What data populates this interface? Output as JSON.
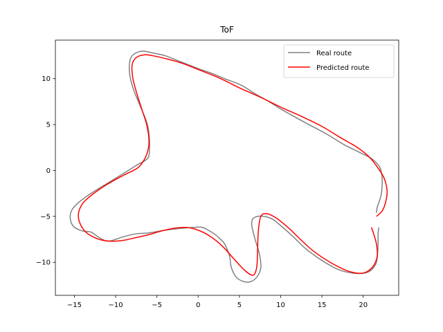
{
  "chart_data": {
    "type": "line",
    "title": "ToF",
    "xlabel": "",
    "ylabel": "",
    "xlim": [
      -17.3,
      24.3
    ],
    "ylim": [
      -13.6,
      14.2
    ],
    "xticks": [
      -15,
      -10,
      -5,
      0,
      5,
      10,
      15,
      20
    ],
    "yticks": [
      -10,
      -5,
      0,
      5,
      10
    ],
    "grid": false,
    "legend_position": "top-right",
    "series": [
      {
        "name": "Real route",
        "color": "#808080",
        "points": [
          [
            21.6,
            -4.6
          ],
          [
            21.7,
            -4.0
          ],
          [
            21.9,
            -3.5
          ],
          [
            22.2,
            -2.5
          ],
          [
            22.3,
            -1.2
          ],
          [
            22.2,
            -0.2
          ],
          [
            21.9,
            0.5
          ],
          [
            21.0,
            1.3
          ],
          [
            19.5,
            2.0
          ],
          [
            17.7,
            2.8
          ],
          [
            15.5,
            4.0
          ],
          [
            13.0,
            5.2
          ],
          [
            10.0,
            6.7
          ],
          [
            8.6,
            7.5
          ],
          [
            7.0,
            8.3
          ],
          [
            5.2,
            9.3
          ],
          [
            3.2,
            10.0
          ],
          [
            1.6,
            10.6
          ],
          [
            0.0,
            11.1
          ],
          [
            -2.0,
            11.8
          ],
          [
            -4.0,
            12.5
          ],
          [
            -5.5,
            12.8
          ],
          [
            -6.6,
            13.0
          ],
          [
            -7.3,
            12.9
          ],
          [
            -8.0,
            12.5
          ],
          [
            -8.3,
            11.8
          ],
          [
            -8.3,
            10.5
          ],
          [
            -7.9,
            9.0
          ],
          [
            -7.2,
            7.4
          ],
          [
            -6.5,
            5.9
          ],
          [
            -6.1,
            4.8
          ],
          [
            -5.9,
            3.4
          ],
          [
            -5.9,
            2.2
          ],
          [
            -6.0,
            1.5
          ],
          [
            -6.4,
            1.1
          ],
          [
            -7.4,
            0.6
          ],
          [
            -9.0,
            -0.3
          ],
          [
            -11.0,
            -1.4
          ],
          [
            -13.0,
            -2.5
          ],
          [
            -14.5,
            -3.5
          ],
          [
            -15.3,
            -4.3
          ],
          [
            -15.5,
            -5.2
          ],
          [
            -15.1,
            -6.1
          ],
          [
            -14.0,
            -6.6
          ],
          [
            -13.0,
            -6.7
          ],
          [
            -12.0,
            -7.3
          ],
          [
            -11.0,
            -7.7
          ],
          [
            -10.0,
            -7.5
          ],
          [
            -9.0,
            -7.2
          ],
          [
            -7.5,
            -6.9
          ],
          [
            -6.0,
            -6.8
          ],
          [
            -4.0,
            -6.5
          ],
          [
            -2.0,
            -6.3
          ],
          [
            -0.5,
            -6.2
          ],
          [
            0.5,
            -6.2
          ],
          [
            1.6,
            -6.7
          ],
          [
            2.5,
            -7.3
          ],
          [
            3.2,
            -8.0
          ],
          [
            3.8,
            -9.3
          ],
          [
            4.0,
            -10.5
          ],
          [
            4.6,
            -11.6
          ],
          [
            5.5,
            -12.1
          ],
          [
            6.4,
            -12.1
          ],
          [
            7.2,
            -11.5
          ],
          [
            7.6,
            -10.5
          ],
          [
            7.4,
            -9.0
          ],
          [
            6.9,
            -7.5
          ],
          [
            6.5,
            -6.0
          ],
          [
            6.6,
            -5.3
          ],
          [
            7.2,
            -5.0
          ],
          [
            8.0,
            -5.0
          ],
          [
            9.0,
            -5.3
          ],
          [
            10.0,
            -6.0
          ],
          [
            11.5,
            -7.2
          ],
          [
            13.0,
            -8.5
          ],
          [
            15.0,
            -9.8
          ],
          [
            17.0,
            -10.8
          ],
          [
            19.0,
            -11.2
          ],
          [
            20.5,
            -11.1
          ],
          [
            21.4,
            -10.4
          ],
          [
            21.7,
            -9.5
          ],
          [
            21.8,
            -8.0
          ],
          [
            21.8,
            -6.9
          ],
          [
            21.9,
            -6.2
          ]
        ]
      },
      {
        "name": "Predicted route",
        "color": "#ff0000",
        "points": [
          [
            21.6,
            -5.0
          ],
          [
            22.3,
            -4.4
          ],
          [
            22.7,
            -3.5
          ],
          [
            22.9,
            -2.3
          ],
          [
            22.6,
            -1.0
          ],
          [
            22.0,
            0.0
          ],
          [
            20.8,
            1.4
          ],
          [
            19.3,
            2.5
          ],
          [
            17.2,
            3.6
          ],
          [
            15.0,
            4.8
          ],
          [
            12.5,
            5.9
          ],
          [
            10.0,
            6.9
          ],
          [
            7.5,
            8.0
          ],
          [
            5.0,
            9.0
          ],
          [
            2.5,
            10.1
          ],
          [
            0.0,
            11.0
          ],
          [
            -2.0,
            11.7
          ],
          [
            -4.0,
            12.2
          ],
          [
            -5.5,
            12.5
          ],
          [
            -6.5,
            12.6
          ],
          [
            -7.5,
            12.3
          ],
          [
            -8.0,
            11.5
          ],
          [
            -7.9,
            10.0
          ],
          [
            -7.4,
            8.3
          ],
          [
            -6.8,
            6.6
          ],
          [
            -6.3,
            5.2
          ],
          [
            -6.0,
            3.8
          ],
          [
            -6.0,
            2.6
          ],
          [
            -6.4,
            1.4
          ],
          [
            -7.3,
            0.3
          ],
          [
            -9.0,
            -0.5
          ],
          [
            -11.0,
            -1.5
          ],
          [
            -12.8,
            -2.6
          ],
          [
            -14.0,
            -3.6
          ],
          [
            -14.5,
            -4.7
          ],
          [
            -14.3,
            -5.8
          ],
          [
            -13.5,
            -6.8
          ],
          [
            -12.0,
            -7.5
          ],
          [
            -10.5,
            -7.7
          ],
          [
            -9.0,
            -7.6
          ],
          [
            -7.5,
            -7.3
          ],
          [
            -6.0,
            -7.0
          ],
          [
            -4.5,
            -6.6
          ],
          [
            -3.0,
            -6.3
          ],
          [
            -1.5,
            -6.2
          ],
          [
            0.0,
            -6.5
          ],
          [
            1.5,
            -7.2
          ],
          [
            3.0,
            -8.3
          ],
          [
            4.5,
            -9.8
          ],
          [
            5.8,
            -11.0
          ],
          [
            6.7,
            -11.4
          ],
          [
            7.1,
            -10.5
          ],
          [
            7.2,
            -8.6
          ],
          [
            7.3,
            -6.5
          ],
          [
            7.6,
            -5.0
          ],
          [
            8.3,
            -4.7
          ],
          [
            9.5,
            -5.2
          ],
          [
            11.0,
            -6.3
          ],
          [
            12.5,
            -7.6
          ],
          [
            14.0,
            -8.8
          ],
          [
            16.0,
            -10.0
          ],
          [
            18.0,
            -10.9
          ],
          [
            19.5,
            -11.2
          ],
          [
            20.5,
            -11.0
          ],
          [
            21.3,
            -10.3
          ],
          [
            21.7,
            -9.3
          ],
          [
            21.6,
            -8.0
          ],
          [
            21.3,
            -7.0
          ],
          [
            21.0,
            -6.2
          ]
        ]
      }
    ]
  }
}
